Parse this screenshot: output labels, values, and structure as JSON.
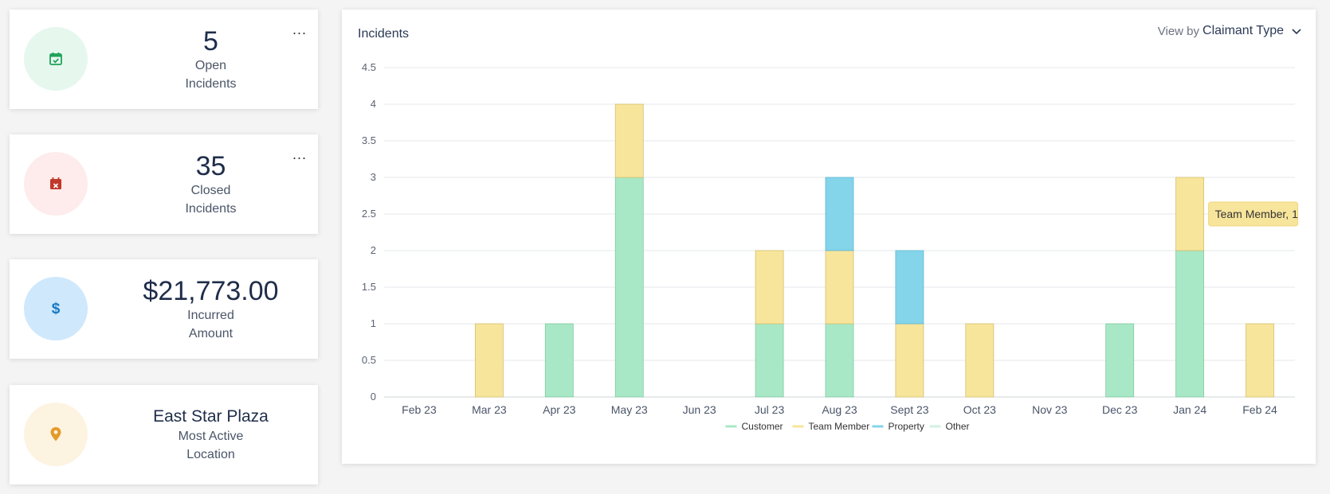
{
  "cards": [
    {
      "value": "5",
      "label_line1": "Open",
      "label_line2": "Incidents",
      "icon": "calendar-check-icon",
      "circle_bg": "#e6f7ee",
      "icon_color": "#1fa35a",
      "menu": "..."
    },
    {
      "value": "35",
      "label_line1": "Closed",
      "label_line2": "Incidents",
      "icon": "calendar-x-icon",
      "circle_bg": "#fdeceb",
      "icon_color": "#c0392b",
      "menu": "..."
    },
    {
      "value": "$21,773.00",
      "label_line1": "Incurred",
      "label_line2": "Amount",
      "icon": "dollar-icon",
      "circle_bg": "#cfe8fc",
      "icon_color": "#1778c2"
    },
    {
      "value": "East Star Plaza",
      "label_line1": "Most Active",
      "label_line2": "Location",
      "icon": "map-pin-icon",
      "circle_bg": "#fdf3e1",
      "icon_color": "#e49b2b"
    }
  ],
  "chart_panel": {
    "title": "Incidents",
    "view_by_label": "View by",
    "view_by_value": "Claimant Type",
    "tooltip": "Team Member, 1"
  },
  "chart_data": {
    "type": "bar",
    "stacked": true,
    "title": "Incidents",
    "categories": [
      "Feb 23",
      "Mar 23",
      "Apr 23",
      "May 23",
      "Jun 23",
      "Jul 23",
      "Aug 23",
      "Sept 23",
      "Oct 23",
      "Nov 23",
      "Dec 23",
      "Jan 24",
      "Feb 24"
    ],
    "series": [
      {
        "name": "Customer",
        "color": "#a9e8c6",
        "values": [
          0,
          0,
          1,
          3,
          0,
          1,
          1,
          0,
          0,
          0,
          1,
          2,
          0
        ]
      },
      {
        "name": "Team Member",
        "color": "#f8e59c",
        "values": [
          0,
          1,
          0,
          1,
          0,
          1,
          1,
          1,
          1,
          0,
          0,
          1,
          1
        ]
      },
      {
        "name": "Property",
        "color": "#84d4ea",
        "values": [
          0,
          0,
          0,
          0,
          0,
          0,
          1,
          1,
          0,
          0,
          0,
          0,
          0
        ]
      },
      {
        "name": "Other",
        "color": "#d3f2e0",
        "values": [
          0,
          0,
          0,
          0,
          0,
          0,
          0,
          0,
          0,
          0,
          0,
          0,
          0
        ]
      }
    ],
    "yticks": [
      "0",
      "0.5",
      "1",
      "1.5",
      "2",
      "2.5",
      "3",
      "3.5",
      "4",
      "4.5"
    ],
    "ylim": [
      0,
      4.5
    ],
    "grid": true,
    "legend_position": "bottom"
  }
}
